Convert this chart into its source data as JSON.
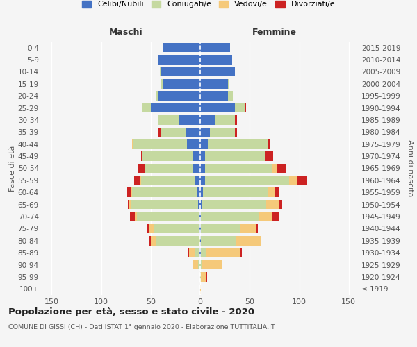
{
  "age_groups": [
    "100+",
    "95-99",
    "90-94",
    "85-89",
    "80-84",
    "75-79",
    "70-74",
    "65-69",
    "60-64",
    "55-59",
    "50-54",
    "45-49",
    "40-44",
    "35-39",
    "30-34",
    "25-29",
    "20-24",
    "15-19",
    "10-14",
    "5-9",
    "0-4"
  ],
  "birth_years": [
    "≤ 1919",
    "1920-1924",
    "1925-1929",
    "1930-1934",
    "1935-1939",
    "1940-1944",
    "1945-1949",
    "1950-1954",
    "1955-1959",
    "1960-1964",
    "1965-1969",
    "1970-1974",
    "1975-1979",
    "1980-1984",
    "1985-1989",
    "1990-1994",
    "1995-1999",
    "2000-2004",
    "2005-2009",
    "2010-2014",
    "2015-2019"
  ],
  "maschi": {
    "celibi": [
      0,
      0,
      0,
      1,
      0,
      1,
      1,
      2,
      3,
      5,
      8,
      8,
      13,
      15,
      22,
      50,
      42,
      38,
      40,
      43,
      38
    ],
    "coniugati": [
      0,
      0,
      2,
      4,
      45,
      46,
      63,
      68,
      66,
      55,
      48,
      50,
      55,
      25,
      20,
      8,
      2,
      1,
      1,
      0,
      0
    ],
    "vedovi": [
      0,
      0,
      5,
      6,
      5,
      5,
      2,
      2,
      1,
      1,
      0,
      0,
      1,
      0,
      0,
      0,
      0,
      0,
      0,
      0,
      0
    ],
    "divorziati": [
      0,
      0,
      0,
      1,
      2,
      1,
      5,
      1,
      4,
      6,
      7,
      2,
      0,
      3,
      1,
      1,
      0,
      0,
      0,
      0,
      0
    ]
  },
  "femmine": {
    "nubili": [
      0,
      0,
      0,
      1,
      1,
      1,
      1,
      2,
      3,
      5,
      5,
      5,
      8,
      10,
      15,
      35,
      28,
      28,
      35,
      32,
      30
    ],
    "coniugate": [
      0,
      1,
      2,
      5,
      35,
      40,
      58,
      65,
      65,
      85,
      68,
      60,
      60,
      25,
      20,
      10,
      5,
      1,
      0,
      0,
      0
    ],
    "vedove": [
      1,
      5,
      20,
      35,
      25,
      15,
      14,
      12,
      8,
      8,
      5,
      1,
      1,
      0,
      0,
      0,
      0,
      0,
      0,
      0,
      0
    ],
    "divorziate": [
      0,
      1,
      0,
      1,
      1,
      2,
      6,
      4,
      4,
      10,
      8,
      8,
      2,
      2,
      2,
      1,
      0,
      0,
      0,
      0,
      0
    ]
  },
  "colors": {
    "celibi": "#4472c4",
    "coniugati": "#c5d9a0",
    "vedovi": "#f5c97a",
    "divorziati": "#cc2222"
  },
  "xlim": 160,
  "title": "Popolazione per età, sesso e stato civile - 2020",
  "subtitle": "COMUNE DI GISSI (CH) - Dati ISTAT 1° gennaio 2020 - Elaborazione TUTTITALIA.IT",
  "ylabel_left": "Fasce di età",
  "ylabel_right": "Anni di nascita",
  "xlabel_left": "Maschi",
  "xlabel_right": "Femmine",
  "bg_color": "#f5f5f5",
  "legend_labels": [
    "Celibi/Nubili",
    "Coniugati/e",
    "Vedovi/e",
    "Divorziati/e"
  ]
}
